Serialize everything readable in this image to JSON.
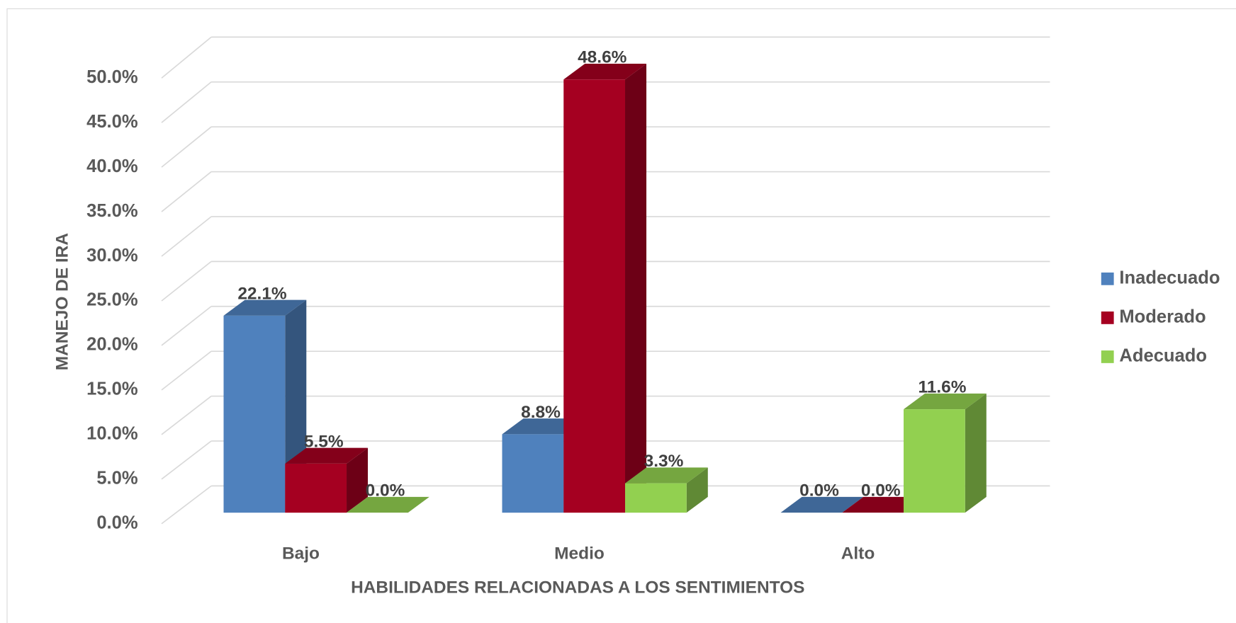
{
  "chart_data": {
    "type": "bar3d",
    "categories": [
      "Bajo",
      "Medio",
      "Alto"
    ],
    "series": [
      {
        "name": "Inadecuado",
        "color": "#4f81bd",
        "values": [
          22.1,
          8.8,
          0.0
        ],
        "value_labels": [
          "22.1%",
          "8.8%",
          "0.0%"
        ]
      },
      {
        "name": "Moderado",
        "color": "#a50021",
        "values": [
          5.5,
          48.6,
          0.0
        ],
        "value_labels": [
          "5.5%",
          "48.6%",
          "0.0%"
        ]
      },
      {
        "name": "Adecuado",
        "color": "#92d050",
        "values": [
          0.0,
          3.3,
          11.6
        ],
        "value_labels": [
          "0.0%",
          "3.3%",
          "11.6%"
        ]
      }
    ],
    "xlabel": "HABILIDADES RELACIONADAS A LOS SENTIMIENTOS",
    "ylabel": "MANEJO DE IRA",
    "ylim": [
      0,
      50
    ],
    "yticks": [
      {
        "value": 0,
        "label": "0.0%"
      },
      {
        "value": 5,
        "label": "5.0%"
      },
      {
        "value": 10,
        "label": "10.0%"
      },
      {
        "value": 15,
        "label": "15.0%"
      },
      {
        "value": 20,
        "label": "20.0%"
      },
      {
        "value": 25,
        "label": "25.0%"
      },
      {
        "value": 30,
        "label": "30.0%"
      },
      {
        "value": 35,
        "label": "35.0%"
      },
      {
        "value": 40,
        "label": "40.0%"
      },
      {
        "value": 45,
        "label": "45.0%"
      },
      {
        "value": 50,
        "label": "50.0%"
      }
    ],
    "grid": true,
    "legend": "right"
  }
}
